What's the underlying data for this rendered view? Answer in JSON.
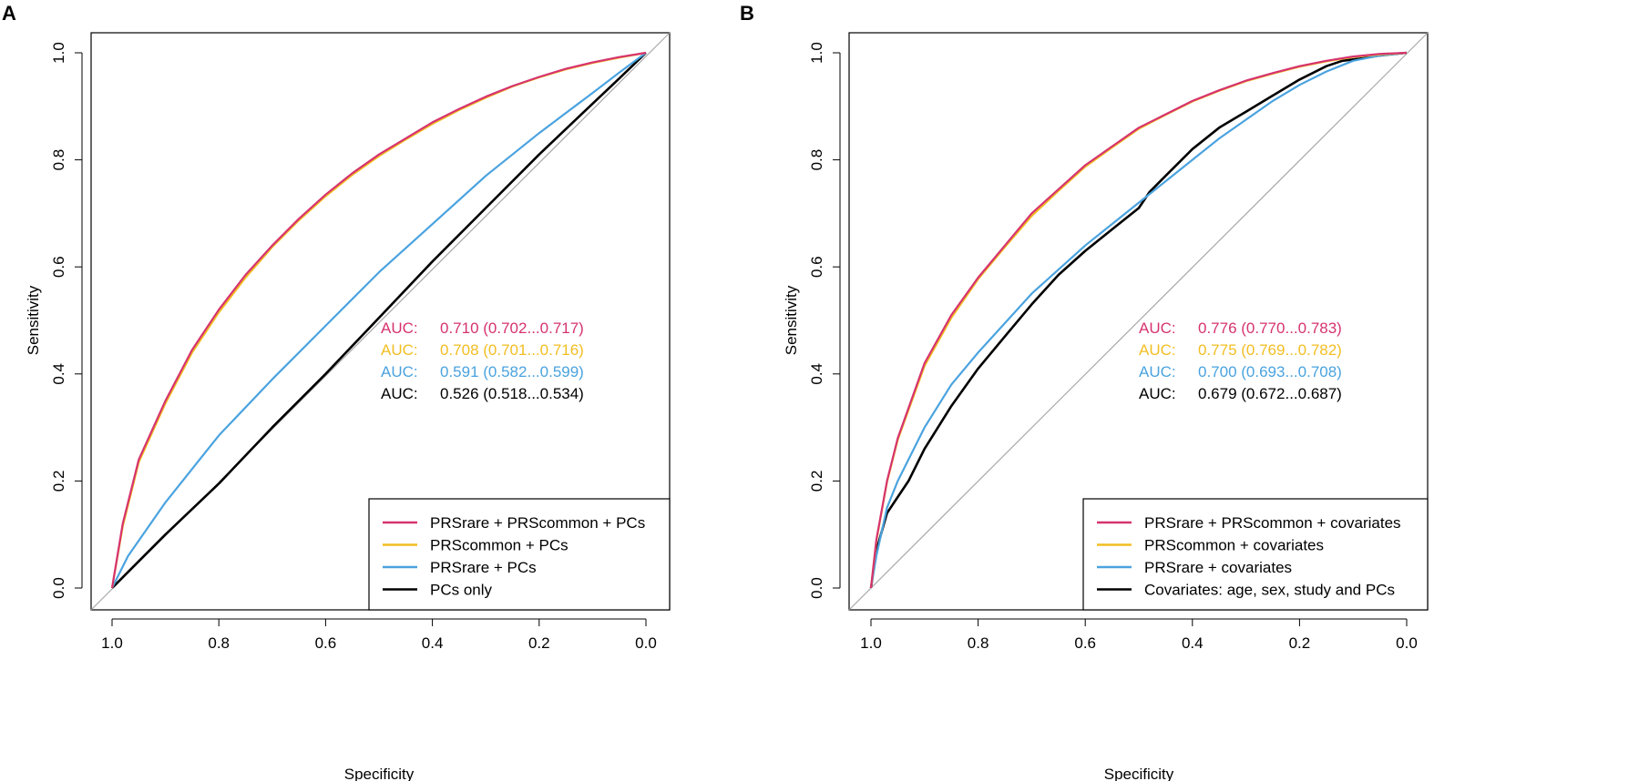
{
  "chart_data": [
    {
      "panel": "A",
      "type": "line",
      "xlabel": "Specificity",
      "ylabel": "Sensitivity",
      "xlim": [
        1.0,
        0.0
      ],
      "ylim": [
        0.0,
        1.0
      ],
      "x_ticks": [
        "1.0",
        "0.8",
        "0.6",
        "0.4",
        "0.2",
        "0.0"
      ],
      "y_ticks": [
        "0.0",
        "0.2",
        "0.4",
        "0.6",
        "0.8",
        "1.0"
      ],
      "legend_position": "bottom-right",
      "auc_labels": [
        {
          "prefix": "AUC:",
          "text": "0.710 (0.702...0.717)",
          "color": "#d6336f"
        },
        {
          "prefix": "AUC:",
          "text": "0.708 (0.701...0.716)",
          "color": "#f2be22"
        },
        {
          "prefix": "AUC:",
          "text": "0.591 (0.582...0.599)",
          "color": "#4aa3df"
        },
        {
          "prefix": "AUC:",
          "text": "0.526 (0.518...0.534)",
          "color": "#000000"
        }
      ],
      "series": [
        {
          "name": "PRSrare + PRScommon + PCs",
          "color": "#d6336f",
          "points": [
            [
              1.0,
              0.0
            ],
            [
              0.98,
              0.12
            ],
            [
              0.95,
              0.24
            ],
            [
              0.9,
              0.35
            ],
            [
              0.85,
              0.445
            ],
            [
              0.8,
              0.52
            ],
            [
              0.75,
              0.585
            ],
            [
              0.7,
              0.64
            ],
            [
              0.65,
              0.69
            ],
            [
              0.6,
              0.735
            ],
            [
              0.55,
              0.775
            ],
            [
              0.5,
              0.81
            ],
            [
              0.45,
              0.84
            ],
            [
              0.4,
              0.87
            ],
            [
              0.35,
              0.895
            ],
            [
              0.3,
              0.918
            ],
            [
              0.25,
              0.938
            ],
            [
              0.2,
              0.955
            ],
            [
              0.15,
              0.97
            ],
            [
              0.1,
              0.982
            ],
            [
              0.05,
              0.992
            ],
            [
              0.0,
              1.0
            ]
          ]
        },
        {
          "name": "PRScommon + PCs",
          "color": "#f2be22",
          "points": [
            [
              1.0,
              0.0
            ],
            [
              0.98,
              0.115
            ],
            [
              0.95,
              0.235
            ],
            [
              0.9,
              0.345
            ],
            [
              0.85,
              0.44
            ],
            [
              0.8,
              0.515
            ],
            [
              0.75,
              0.58
            ],
            [
              0.7,
              0.637
            ],
            [
              0.65,
              0.687
            ],
            [
              0.6,
              0.732
            ],
            [
              0.55,
              0.772
            ],
            [
              0.5,
              0.807
            ],
            [
              0.45,
              0.838
            ],
            [
              0.4,
              0.867
            ],
            [
              0.35,
              0.893
            ],
            [
              0.3,
              0.916
            ],
            [
              0.25,
              0.937
            ],
            [
              0.2,
              0.954
            ],
            [
              0.15,
              0.969
            ],
            [
              0.1,
              0.981
            ],
            [
              0.05,
              0.991
            ],
            [
              0.0,
              1.0
            ]
          ]
        },
        {
          "name": "PRSrare + PCs",
          "color": "#4aa3df",
          "points": [
            [
              1.0,
              0.0
            ],
            [
              0.97,
              0.06
            ],
            [
              0.9,
              0.16
            ],
            [
              0.8,
              0.285
            ],
            [
              0.7,
              0.39
            ],
            [
              0.6,
              0.49
            ],
            [
              0.5,
              0.59
            ],
            [
              0.4,
              0.68
            ],
            [
              0.3,
              0.77
            ],
            [
              0.2,
              0.85
            ],
            [
              0.1,
              0.925
            ],
            [
              0.05,
              0.963
            ],
            [
              0.0,
              1.0
            ]
          ]
        },
        {
          "name": "PCs only",
          "color": "#000000",
          "points": [
            [
              1.0,
              0.0
            ],
            [
              0.95,
              0.05
            ],
            [
              0.9,
              0.1
            ],
            [
              0.8,
              0.195
            ],
            [
              0.7,
              0.3
            ],
            [
              0.6,
              0.4
            ],
            [
              0.5,
              0.505
            ],
            [
              0.4,
              0.61
            ],
            [
              0.3,
              0.71
            ],
            [
              0.2,
              0.81
            ],
            [
              0.1,
              0.905
            ],
            [
              0.05,
              0.952
            ],
            [
              0.0,
              1.0
            ]
          ]
        }
      ]
    },
    {
      "panel": "B",
      "type": "line",
      "xlabel": "Specificity",
      "ylabel": "Sensitivity",
      "xlim": [
        1.0,
        0.0
      ],
      "ylim": [
        0.0,
        1.0
      ],
      "x_ticks": [
        "1.0",
        "0.8",
        "0.6",
        "0.4",
        "0.2",
        "0.0"
      ],
      "y_ticks": [
        "0.0",
        "0.2",
        "0.4",
        "0.6",
        "0.8",
        "1.0"
      ],
      "legend_position": "bottom-right",
      "auc_labels": [
        {
          "prefix": "AUC:",
          "text": "0.776 (0.770...0.783)",
          "color": "#d6336f"
        },
        {
          "prefix": "AUC:",
          "text": "0.775 (0.769...0.782)",
          "color": "#f2be22"
        },
        {
          "prefix": "AUC:",
          "text": "0.700 (0.693...0.708)",
          "color": "#4aa3df"
        },
        {
          "prefix": "AUC:",
          "text": "0.679 (0.672...0.687)",
          "color": "#000000"
        }
      ],
      "series": [
        {
          "name": "PRSrare + PRScommon + covariates",
          "color": "#d6336f",
          "points": [
            [
              1.0,
              0.0
            ],
            [
              0.99,
              0.09
            ],
            [
              0.97,
              0.2
            ],
            [
              0.95,
              0.28
            ],
            [
              0.9,
              0.42
            ],
            [
              0.85,
              0.51
            ],
            [
              0.8,
              0.58
            ],
            [
              0.75,
              0.64
            ],
            [
              0.7,
              0.7
            ],
            [
              0.65,
              0.745
            ],
            [
              0.6,
              0.79
            ],
            [
              0.55,
              0.825
            ],
            [
              0.5,
              0.86
            ],
            [
              0.45,
              0.885
            ],
            [
              0.4,
              0.91
            ],
            [
              0.35,
              0.93
            ],
            [
              0.3,
              0.948
            ],
            [
              0.25,
              0.962
            ],
            [
              0.2,
              0.975
            ],
            [
              0.15,
              0.985
            ],
            [
              0.1,
              0.993
            ],
            [
              0.05,
              0.998
            ],
            [
              0.0,
              1.0
            ]
          ]
        },
        {
          "name": "PRScommon + covariates",
          "color": "#f2be22",
          "points": [
            [
              1.0,
              0.0
            ],
            [
              0.99,
              0.088
            ],
            [
              0.97,
              0.198
            ],
            [
              0.95,
              0.277
            ],
            [
              0.9,
              0.415
            ],
            [
              0.85,
              0.505
            ],
            [
              0.8,
              0.577
            ],
            [
              0.75,
              0.637
            ],
            [
              0.7,
              0.695
            ],
            [
              0.65,
              0.742
            ],
            [
              0.6,
              0.787
            ],
            [
              0.55,
              0.823
            ],
            [
              0.5,
              0.858
            ],
            [
              0.45,
              0.884
            ],
            [
              0.4,
              0.909
            ],
            [
              0.35,
              0.929
            ],
            [
              0.3,
              0.947
            ],
            [
              0.25,
              0.961
            ],
            [
              0.2,
              0.974
            ],
            [
              0.15,
              0.984
            ],
            [
              0.1,
              0.992
            ],
            [
              0.05,
              0.997
            ],
            [
              0.0,
              1.0
            ]
          ]
        },
        {
          "name": "PRSrare + covariates",
          "color": "#4aa3df",
          "points": [
            [
              1.0,
              0.0
            ],
            [
              0.99,
              0.06
            ],
            [
              0.97,
              0.15
            ],
            [
              0.95,
              0.2
            ],
            [
              0.9,
              0.3
            ],
            [
              0.85,
              0.38
            ],
            [
              0.8,
              0.44
            ],
            [
              0.7,
              0.55
            ],
            [
              0.6,
              0.64
            ],
            [
              0.5,
              0.72
            ],
            [
              0.45,
              0.76
            ],
            [
              0.4,
              0.8
            ],
            [
              0.35,
              0.84
            ],
            [
              0.3,
              0.875
            ],
            [
              0.25,
              0.91
            ],
            [
              0.2,
              0.94
            ],
            [
              0.15,
              0.965
            ],
            [
              0.1,
              0.985
            ],
            [
              0.05,
              0.995
            ],
            [
              0.0,
              1.0
            ]
          ]
        },
        {
          "name": "Covariates: age, sex, study and PCs",
          "color": "#000000",
          "points": [
            [
              1.0,
              0.0
            ],
            [
              0.99,
              0.07
            ],
            [
              0.97,
              0.14
            ],
            [
              0.95,
              0.17
            ],
            [
              0.93,
              0.2
            ],
            [
              0.9,
              0.26
            ],
            [
              0.85,
              0.34
            ],
            [
              0.8,
              0.41
            ],
            [
              0.75,
              0.47
            ],
            [
              0.7,
              0.53
            ],
            [
              0.65,
              0.585
            ],
            [
              0.6,
              0.63
            ],
            [
              0.55,
              0.67
            ],
            [
              0.5,
              0.71
            ],
            [
              0.48,
              0.74
            ],
            [
              0.45,
              0.77
            ],
            [
              0.4,
              0.82
            ],
            [
              0.35,
              0.86
            ],
            [
              0.3,
              0.89
            ],
            [
              0.25,
              0.92
            ],
            [
              0.2,
              0.95
            ],
            [
              0.15,
              0.975
            ],
            [
              0.12,
              0.985
            ],
            [
              0.08,
              0.99
            ],
            [
              0.05,
              0.995
            ],
            [
              0.0,
              1.0
            ]
          ]
        }
      ]
    }
  ],
  "legends": [
    {
      "items": [
        "PRSrare + PRScommon + PCs",
        "PRScommon + PCs",
        "PRSrare + PCs",
        "PCs only"
      ]
    },
    {
      "items": [
        "PRSrare + PRScommon + covariates",
        "PRScommon + covariates",
        "PRSrare + covariates",
        "Covariates: age, sex, study and PCs"
      ]
    }
  ]
}
